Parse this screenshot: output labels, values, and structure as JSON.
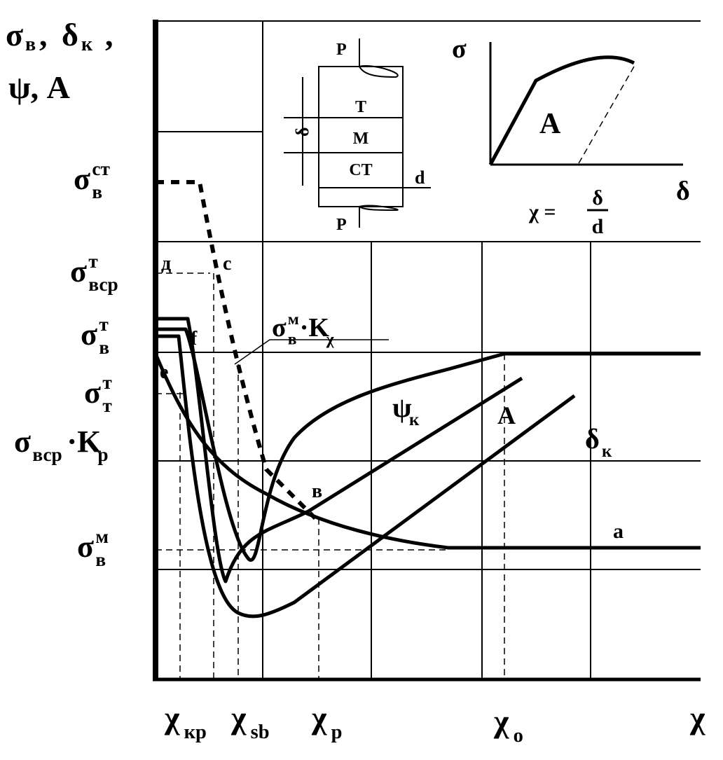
{
  "y_axis_title": {
    "sigma": "σ",
    "sigma_sub": "в",
    "sep1": ", ",
    "delta": "δ",
    "delta_sub": "к",
    "sep2": ",",
    "line2": "ψ, А"
  },
  "y_labels": [
    {
      "base": "σ",
      "sup": "ст",
      "sub": "в"
    },
    {
      "base": "σ",
      "sup": "т",
      "sub": "вср"
    },
    {
      "base": "σ",
      "sup": "т",
      "sub": "в"
    },
    {
      "base": "σ",
      "sup": "т",
      "sub": "т"
    },
    {
      "base": "σ",
      "sub": "вср",
      "tail": "·K",
      "tail_sub": "р"
    },
    {
      "base": "σ",
      "sup": "м",
      "sub": "в"
    }
  ],
  "x_labels": [
    {
      "base": "χ",
      "sub": "кр"
    },
    {
      "base": "χ",
      "sub": "sb"
    },
    {
      "base": "χ",
      "sub": "р"
    },
    {
      "base": "χ",
      "sub": "о"
    },
    {
      "base": "χ"
    }
  ],
  "curve_labels": {
    "d": "д",
    "c": "с",
    "f": "f",
    "e": "e",
    "v": "в",
    "a": "a",
    "kchi": {
      "base": "σ",
      "sup": "м",
      "sub": "в",
      "tail": "·K",
      "tail_sub": "χ"
    },
    "psi": {
      "base": "ψ",
      "sub": "к"
    },
    "A": "A",
    "delta": {
      "base": "δ",
      "sub": "к"
    }
  },
  "inset_specimen": {
    "p_top": "P",
    "layers": [
      "Т",
      "М",
      "СТ"
    ],
    "delta": "δ",
    "d": "d",
    "p_bottom": "P"
  },
  "inset_diagram": {
    "y": "σ",
    "area": "A",
    "x": "δ",
    "formula_lhs": "χ =",
    "num": "δ",
    "den": "d"
  }
}
